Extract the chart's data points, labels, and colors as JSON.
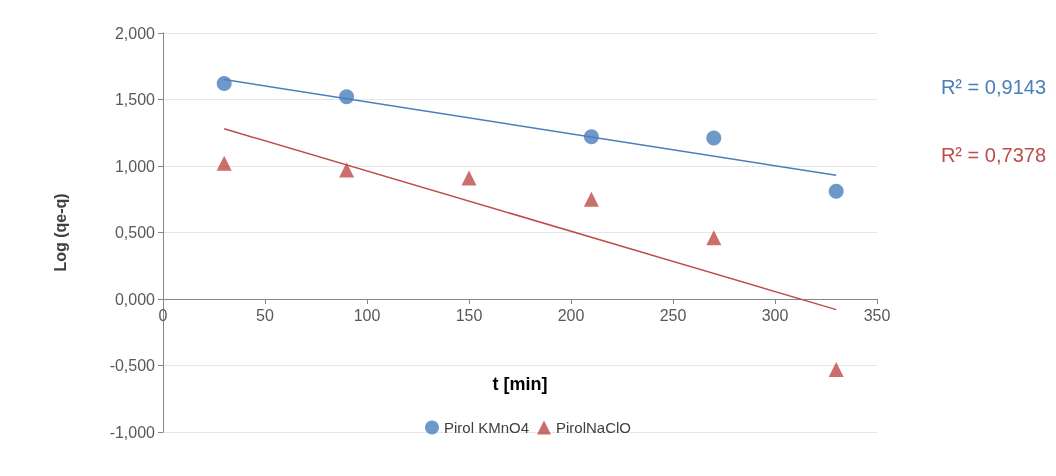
{
  "chart_data": {
    "type": "scatter",
    "xlabel": "t [min]",
    "ylabel": "Log (qe-q)",
    "series": [
      {
        "name": "Pirol KMnO4",
        "color": "#4a7ebb",
        "marker": "circle",
        "x": [
          30,
          90,
          210,
          270,
          330
        ],
        "values": [
          1.62,
          1.52,
          1.22,
          1.21,
          0.81
        ]
      },
      {
        "name": "PirolNaClO",
        "color": "#be4b48",
        "marker": "triangle",
        "x": [
          30,
          90,
          150,
          210,
          270,
          330
        ],
        "values": [
          1.02,
          0.97,
          0.91,
          0.75,
          0.46,
          -0.53
        ]
      },
      {
        "type": "line",
        "color": "#4a7ebb",
        "marker": "none",
        "x": [
          30,
          330
        ],
        "values": [
          1.65,
          0.93
        ]
      },
      {
        "type": "line",
        "color": "#be4b48",
        "marker": "none",
        "x": [
          30,
          330
        ],
        "values": [
          1.28,
          -0.08
        ]
      }
    ],
    "annotations": [
      "R² = 0,9143",
      "R² = 0,7378"
    ],
    "xlim": [
      0,
      350
    ],
    "xticks": [
      0,
      50,
      100,
      150,
      200,
      250,
      300,
      350
    ],
    "ylim": [
      -1,
      2
    ],
    "yticks": [
      {
        "value": -1,
        "label": "-1,000"
      },
      {
        "value": -0.5,
        "label": "-0,500"
      },
      {
        "value": 0,
        "label": "0,000"
      },
      {
        "value": 0.5,
        "label": "0,500"
      },
      {
        "value": 1,
        "label": "1,000"
      },
      {
        "value": 1.5,
        "label": "1,500"
      },
      {
        "value": 2,
        "label": "2,000"
      }
    ],
    "grid": "y",
    "legend": "bottom"
  }
}
